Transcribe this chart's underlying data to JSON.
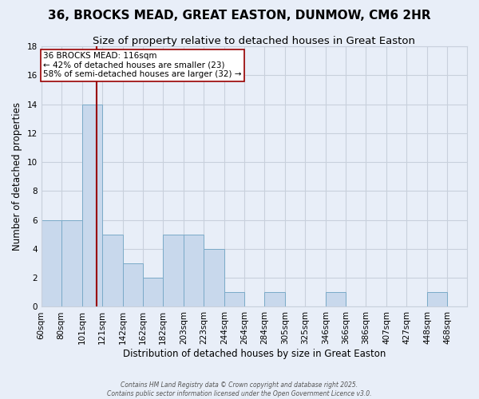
{
  "title": "36, BROCKS MEAD, GREAT EASTON, DUNMOW, CM6 2HR",
  "subtitle": "Size of property relative to detached houses in Great Easton",
  "xlabel": "Distribution of detached houses by size in Great Easton",
  "ylabel": "Number of detached properties",
  "bar_color": "#c8d8ec",
  "bar_edge_color": "#7aaac8",
  "background_color": "#e8eef8",
  "grid_color": "#c8d0dc",
  "bins": [
    "60sqm",
    "80sqm",
    "101sqm",
    "121sqm",
    "142sqm",
    "162sqm",
    "182sqm",
    "203sqm",
    "223sqm",
    "244sqm",
    "264sqm",
    "284sqm",
    "305sqm",
    "325sqm",
    "346sqm",
    "366sqm",
    "386sqm",
    "407sqm",
    "427sqm",
    "448sqm",
    "468sqm"
  ],
  "bin_edges": [
    60,
    80,
    101,
    121,
    142,
    162,
    182,
    203,
    223,
    244,
    264,
    284,
    305,
    325,
    346,
    366,
    386,
    407,
    427,
    448,
    468
  ],
  "bin_widths": [
    20,
    21,
    20,
    21,
    20,
    20,
    21,
    20,
    21,
    20,
    20,
    21,
    20,
    21,
    20,
    20,
    21,
    20,
    21,
    20,
    20
  ],
  "counts": [
    6,
    6,
    14,
    5,
    3,
    2,
    5,
    5,
    4,
    1,
    0,
    1,
    0,
    0,
    1,
    0,
    0,
    0,
    0,
    1,
    0
  ],
  "ylim": [
    0,
    18
  ],
  "yticks": [
    0,
    2,
    4,
    6,
    8,
    10,
    12,
    14,
    16,
    18
  ],
  "vline_x": 116,
  "vline_color": "#990000",
  "annotation_title": "36 BROCKS MEAD: 116sqm",
  "annotation_line1": "← 42% of detached houses are smaller (23)",
  "annotation_line2": "58% of semi-detached houses are larger (32) →",
  "annotation_box_color": "#ffffff",
  "annotation_box_edge": "#990000",
  "footer_line1": "Contains HM Land Registry data © Crown copyright and database right 2025.",
  "footer_line2": "Contains public sector information licensed under the Open Government Licence v3.0.",
  "title_fontsize": 11,
  "subtitle_fontsize": 9.5,
  "label_fontsize": 8.5,
  "tick_fontsize": 7.5,
  "annot_fontsize": 7.5
}
